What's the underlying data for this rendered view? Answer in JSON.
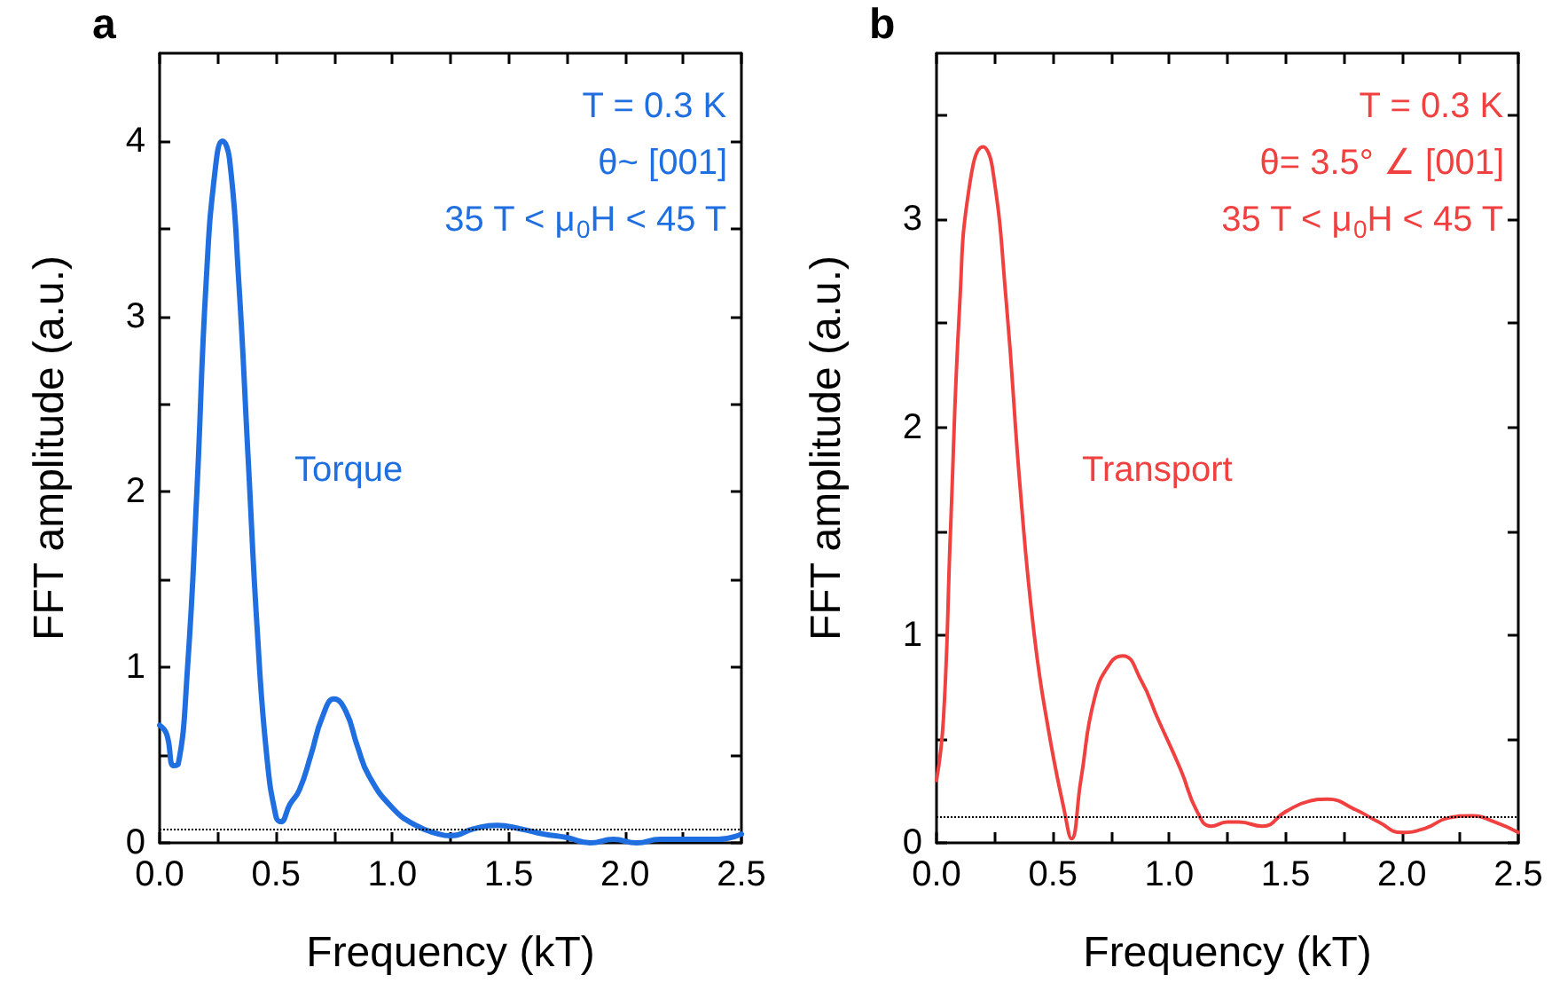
{
  "chart_data": [
    {
      "type": "line",
      "title": "a",
      "xlabel": "Frequency (kT)",
      "ylabel": "FFT amplitude (a.u.)",
      "xlim": [
        0,
        2.5
      ],
      "xticks": [
        {
          "value": 0,
          "label": "0.0"
        },
        {
          "value": 0.25,
          "label": null
        },
        {
          "value": 0.5,
          "label": "0.5"
        },
        {
          "value": 0.75,
          "label": null
        },
        {
          "value": 1,
          "label": "1.0"
        },
        {
          "value": 1.25,
          "label": null
        },
        {
          "value": 1.5,
          "label": "1.5"
        },
        {
          "value": 1.75,
          "label": null
        },
        {
          "value": 2,
          "label": "2.0"
        },
        {
          "value": 2.25,
          "label": null
        },
        {
          "value": 2.5,
          "label": "2.5"
        }
      ],
      "ylim": [
        0,
        4.5
      ],
      "yticks": [
        0,
        {
          "value": 0.5,
          "label": null
        },
        1,
        {
          "value": 1.5,
          "label": null
        },
        2,
        {
          "value": 2.5,
          "label": null
        },
        3,
        {
          "value": 3.5,
          "label": null
        },
        4
      ],
      "grid": false,
      "legend": false,
      "marker": "none",
      "line_style": "solid",
      "annotations": [
        "T = 0.3 K",
        "θ~ [001]",
        "35 T < μ$_{0}$H < 45 T"
      ],
      "ref_lines": [
        {
          "axis": "y",
          "value": 0.08,
          "color": "#000000",
          "line_style": "dotted"
        }
      ],
      "series": [
        {
          "name": "Torque",
          "color": "#1f6fe0",
          "x": [
            0,
            0.03,
            0.06,
            0.08,
            0.12,
            0.16,
            0.2,
            0.24,
            0.27,
            0.3,
            0.34,
            0.38,
            0.42,
            0.46,
            0.5,
            0.52,
            0.56,
            0.6,
            0.65,
            0.7,
            0.75,
            0.8,
            0.85,
            0.9,
            1.0,
            1.1,
            1.2,
            1.25,
            1.35,
            1.45,
            1.55,
            1.65,
            1.75,
            1.85,
            1.95,
            2.05,
            2.15,
            2.3,
            2.4,
            2.5
          ],
          "values": [
            0.67,
            0.62,
            0.44,
            0.45,
            1.0,
            2.0,
            3.2,
            3.85,
            4.0,
            3.9,
            3.2,
            2.2,
            1.2,
            0.5,
            0.15,
            0.12,
            0.22,
            0.3,
            0.5,
            0.72,
            0.82,
            0.75,
            0.55,
            0.38,
            0.2,
            0.1,
            0.05,
            0.04,
            0.08,
            0.1,
            0.08,
            0.05,
            0.03,
            0.0,
            0.02,
            0.0,
            0.02,
            0.02,
            0.02,
            0.05
          ]
        }
      ]
    },
    {
      "type": "line",
      "title": "b",
      "xlabel": "Frequency (kT)",
      "ylabel": "FFT amplitude (a.u.)",
      "xlim": [
        0,
        2.5
      ],
      "xticks": [
        {
          "value": 0,
          "label": "0.0"
        },
        {
          "value": 0.25,
          "label": null
        },
        {
          "value": 0.5,
          "label": "0.5"
        },
        {
          "value": 0.75,
          "label": null
        },
        {
          "value": 1,
          "label": "1.0"
        },
        {
          "value": 1.25,
          "label": null
        },
        {
          "value": 1.5,
          "label": "1.5"
        },
        {
          "value": 1.75,
          "label": null
        },
        {
          "value": 2,
          "label": "2.0"
        },
        {
          "value": 2.25,
          "label": null
        },
        {
          "value": 2.5,
          "label": "2.5"
        }
      ],
      "ylim": [
        0,
        3.8
      ],
      "yticks": [
        0,
        {
          "value": 0.5,
          "label": null
        },
        1,
        {
          "value": 1.5,
          "label": null
        },
        2,
        {
          "value": 2.5,
          "label": null
        },
        3,
        {
          "value": 3.5,
          "label": null
        }
      ],
      "grid": false,
      "legend": false,
      "marker": "none",
      "line_style": "solid",
      "annotations": [
        "T = 0.3 K",
        "θ= 3.5° ∠ [001]",
        "35 T < μ$_{0}$H < 45 T"
      ],
      "ref_lines": [
        {
          "axis": "y",
          "value": 0.13,
          "color": "#000000",
          "line_style": "dotted"
        }
      ],
      "series": [
        {
          "name": "Transport",
          "color": "#f04040",
          "x": [
            0,
            0.03,
            0.06,
            0.1,
            0.14,
            0.2,
            0.24,
            0.3,
            0.36,
            0.42,
            0.48,
            0.55,
            0.58,
            0.62,
            0.68,
            0.75,
            0.8,
            0.88,
            0.95,
            1.05,
            1.12,
            1.18,
            1.25,
            1.3,
            1.4,
            1.5,
            1.6,
            1.68,
            1.8,
            1.9,
            2.0,
            2.1,
            2.2,
            2.3,
            2.4,
            2.5
          ],
          "values": [
            0.3,
            0.6,
            1.5,
            2.6,
            3.15,
            3.35,
            3.25,
            2.6,
            1.7,
            1.0,
            0.55,
            0.15,
            0.02,
            0.3,
            0.7,
            0.87,
            0.9,
            0.78,
            0.6,
            0.35,
            0.15,
            0.08,
            0.1,
            0.1,
            0.08,
            0.15,
            0.2,
            0.21,
            0.16,
            0.1,
            0.05,
            0.07,
            0.12,
            0.13,
            0.1,
            0.05
          ]
        }
      ]
    }
  ]
}
